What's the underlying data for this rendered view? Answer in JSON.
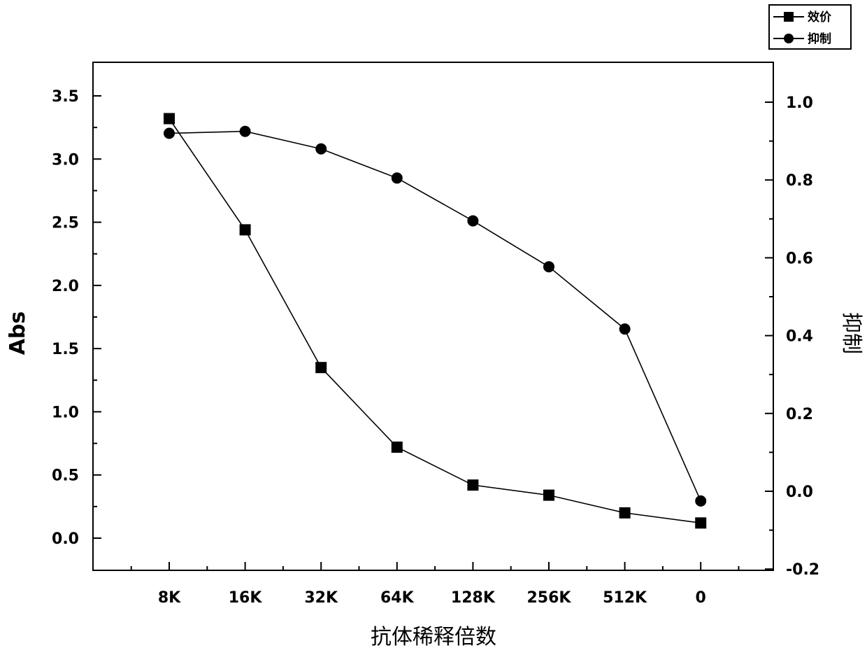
{
  "chart_data": {
    "type": "line",
    "title": "",
    "xlabel": "抗体稀释倍数",
    "ylabel": "Abs",
    "y2label": "抑制",
    "categories": [
      "8K",
      "16K",
      "32K",
      "64K",
      "128K",
      "256K",
      "512K",
      "0"
    ],
    "ylim": [
      -0.4,
      3.7
    ],
    "y2lim": [
      -0.2,
      1.1
    ],
    "yticks": [
      "0.0",
      "0.5",
      "1.0",
      "1.5",
      "2.0",
      "2.5",
      "3.0",
      "3.5"
    ],
    "y2ticks": [
      "-0.2",
      "0.0",
      "0.2",
      "0.4",
      "0.6",
      "0.8",
      "1.0"
    ],
    "grid": false,
    "legend_position": "top-right",
    "series": [
      {
        "name": "效价",
        "axis": "left",
        "marker": "square",
        "values": [
          3.32,
          2.44,
          1.35,
          0.72,
          0.42,
          0.34,
          0.2,
          0.12
        ]
      },
      {
        "name": "抑制",
        "axis": "right",
        "marker": "circle",
        "values": [
          0.92,
          0.925,
          0.88,
          0.805,
          0.695,
          0.577,
          0.417,
          -0.025
        ]
      }
    ],
    "colors": {
      "line": "#000000",
      "marker": "#000000",
      "frame": "#000000"
    }
  }
}
